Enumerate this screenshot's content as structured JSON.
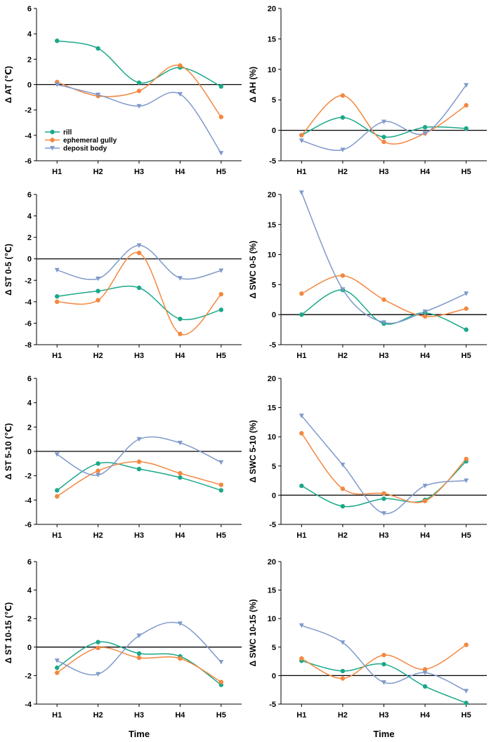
{
  "figure": {
    "xlabel": "Time"
  },
  "legend": {
    "entries": [
      {
        "name": "rill",
        "color": "#1aa889",
        "marker": "circle"
      },
      {
        "name": "ephemeral gully",
        "color": "#f4873f",
        "marker": "circle"
      },
      {
        "name": "deposit body",
        "color": "#7f9acb",
        "marker": "triangle-down"
      }
    ]
  },
  "chart_data": [
    {
      "type": "line",
      "panel": "left-1",
      "categories": [
        "H1",
        "H2",
        "H3",
        "H4",
        "H5"
      ],
      "ylabel": "Δ AT (℃)",
      "ylim": [
        -6,
        6
      ],
      "yticks": [
        -6,
        -4,
        -2,
        0,
        2,
        4,
        6
      ],
      "xlabel": "",
      "series": [
        {
          "name": "rill",
          "values": [
            3.45,
            2.85,
            0.15,
            1.35,
            -0.15
          ]
        },
        {
          "name": "ephemeral gully",
          "values": [
            0.2,
            -0.9,
            -0.5,
            1.5,
            -2.55
          ]
        },
        {
          "name": "deposit body",
          "values": [
            0.0,
            -0.8,
            -1.7,
            -0.75,
            -5.4
          ]
        }
      ]
    },
    {
      "type": "line",
      "panel": "right-1",
      "categories": [
        "H1",
        "H2",
        "H3",
        "H4",
        "H5"
      ],
      "ylabel": "Δ AH (%)",
      "ylim": [
        -5,
        20
      ],
      "yticks": [
        -5,
        0,
        5,
        10,
        15,
        20
      ],
      "xlabel": "",
      "series": [
        {
          "name": "rill",
          "values": [
            -0.8,
            2.1,
            -1.1,
            0.5,
            0.3
          ]
        },
        {
          "name": "ephemeral gully",
          "values": [
            -0.8,
            5.7,
            -1.9,
            -0.5,
            4.1
          ]
        },
        {
          "name": "deposit body",
          "values": [
            -1.7,
            -3.2,
            1.4,
            -0.5,
            7.4
          ]
        }
      ]
    },
    {
      "type": "line",
      "panel": "left-2",
      "categories": [
        "H1",
        "H2",
        "H3",
        "H4",
        "H5"
      ],
      "ylabel": "Δ ST 0-5 (℃)",
      "ylim": [
        -8,
        6
      ],
      "yticks": [
        -8,
        -6,
        -4,
        -2,
        0,
        2,
        4,
        6
      ],
      "xlabel": "",
      "series": [
        {
          "name": "rill",
          "values": [
            -3.5,
            -3.0,
            -2.7,
            -5.6,
            -4.75
          ]
        },
        {
          "name": "ephemeral gully",
          "values": [
            -4.0,
            -3.85,
            0.55,
            -7.0,
            -3.3
          ]
        },
        {
          "name": "deposit body",
          "values": [
            -1.05,
            -1.85,
            1.25,
            -1.8,
            -1.1
          ]
        }
      ]
    },
    {
      "type": "line",
      "panel": "right-2",
      "categories": [
        "H1",
        "H2",
        "H3",
        "H4",
        "H5"
      ],
      "ylabel": "Δ SWC 0-5 (%)",
      "ylim": [
        -5,
        20
      ],
      "yticks": [
        -5,
        0,
        5,
        10,
        15,
        20
      ],
      "xlabel": "",
      "series": [
        {
          "name": "rill",
          "values": [
            0.0,
            4.1,
            -1.5,
            0.3,
            -2.5
          ]
        },
        {
          "name": "ephemeral gully",
          "values": [
            3.5,
            6.5,
            2.5,
            -0.3,
            1.0
          ]
        },
        {
          "name": "deposit body",
          "values": [
            20.3,
            4.2,
            -1.3,
            0.5,
            3.5
          ]
        }
      ]
    },
    {
      "type": "line",
      "panel": "left-3",
      "categories": [
        "H1",
        "H2",
        "H3",
        "H4",
        "H5"
      ],
      "ylabel": "Δ ST 5-10 (℃)",
      "ylim": [
        -6,
        6
      ],
      "yticks": [
        -6,
        -4,
        -2,
        0,
        2,
        4,
        6
      ],
      "xlabel": "",
      "series": [
        {
          "name": "rill",
          "values": [
            -3.2,
            -1.0,
            -1.45,
            -2.15,
            -3.2
          ]
        },
        {
          "name": "ephemeral gully",
          "values": [
            -3.7,
            -1.6,
            -0.85,
            -1.8,
            -2.75
          ]
        },
        {
          "name": "deposit body",
          "values": [
            -0.25,
            -1.95,
            1.0,
            0.7,
            -0.9
          ]
        }
      ]
    },
    {
      "type": "line",
      "panel": "right-3",
      "categories": [
        "H1",
        "H2",
        "H3",
        "H4",
        "H5"
      ],
      "ylabel": "Δ SWC 5-10 (%)",
      "ylim": [
        -5,
        20
      ],
      "yticks": [
        -5,
        0,
        5,
        10,
        15,
        20
      ],
      "xlabel": "",
      "series": [
        {
          "name": "rill",
          "values": [
            1.6,
            -1.9,
            -0.6,
            -0.8,
            5.8
          ]
        },
        {
          "name": "ephemeral gully",
          "values": [
            10.6,
            1.1,
            0.3,
            -1.0,
            6.2
          ]
        },
        {
          "name": "deposit body",
          "values": [
            13.6,
            5.2,
            -3.1,
            1.6,
            2.5
          ]
        }
      ]
    },
    {
      "type": "line",
      "panel": "left-4",
      "categories": [
        "H1",
        "H2",
        "H3",
        "H4",
        "H5"
      ],
      "ylabel": "Δ ST 10-15 (℃)",
      "ylim": [
        -4,
        6
      ],
      "yticks": [
        -4,
        -2,
        0,
        2,
        4,
        6
      ],
      "xlabel": "Time",
      "series": [
        {
          "name": "rill",
          "values": [
            -1.45,
            0.35,
            -0.45,
            -0.65,
            -2.65
          ]
        },
        {
          "name": "ephemeral gully",
          "values": [
            -1.8,
            -0.05,
            -0.75,
            -0.8,
            -2.45
          ]
        },
        {
          "name": "deposit body",
          "values": [
            -0.95,
            -1.9,
            0.8,
            1.65,
            -1.05
          ]
        }
      ]
    },
    {
      "type": "line",
      "panel": "right-4",
      "categories": [
        "H1",
        "H2",
        "H3",
        "H4",
        "H5"
      ],
      "ylabel": "Δ SWC 10-15 (%)",
      "ylim": [
        -5,
        20
      ],
      "yticks": [
        -5,
        0,
        5,
        10,
        15,
        20
      ],
      "xlabel": "Time",
      "series": [
        {
          "name": "rill",
          "values": [
            2.6,
            0.8,
            2.0,
            -1.9,
            -4.8
          ]
        },
        {
          "name": "ephemeral gully",
          "values": [
            3.0,
            -0.5,
            3.6,
            1.1,
            5.4
          ]
        },
        {
          "name": "deposit body",
          "values": [
            8.8,
            5.8,
            -1.2,
            0.5,
            -2.7
          ]
        }
      ]
    }
  ]
}
